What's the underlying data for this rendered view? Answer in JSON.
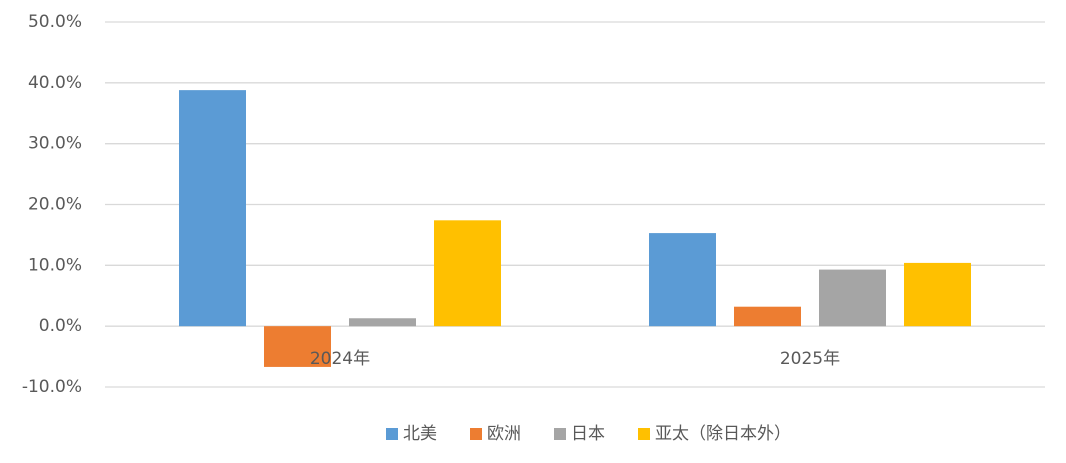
{
  "chart_data": {
    "type": "bar",
    "categories": [
      "2024年",
      "2025年"
    ],
    "series": [
      {
        "name": "北美",
        "color": "#5b9bd5",
        "values": [
          38.8,
          15.3
        ]
      },
      {
        "name": "欧洲",
        "color": "#ed7d31",
        "values": [
          -6.7,
          3.2
        ]
      },
      {
        "name": "日本",
        "color": "#a5a5a5",
        "values": [
          1.3,
          9.3
        ]
      },
      {
        "name": "亚太（除日本外）",
        "color": "#ffc000",
        "values": [
          17.4,
          10.4
        ]
      }
    ],
    "ylim": [
      -10,
      50
    ],
    "yticks": [
      {
        "value": -10,
        "label": "-10.0%"
      },
      {
        "value": 0,
        "label": "0.0%"
      },
      {
        "value": 10,
        "label": "10.0%"
      },
      {
        "value": 20,
        "label": "20.0%"
      },
      {
        "value": 30,
        "label": "30.0%"
      },
      {
        "value": 40,
        "label": "40.0%"
      },
      {
        "value": 50,
        "label": "50.0%"
      }
    ],
    "grid": true,
    "legend": "bottom"
  }
}
